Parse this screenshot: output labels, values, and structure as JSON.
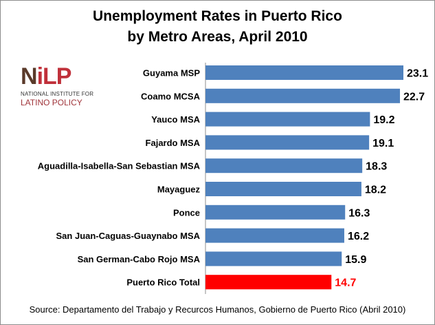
{
  "title_lines": [
    "Unemployment Rates in Puerto Rico",
    "by Metro Areas, April 2010"
  ],
  "logo": {
    "word_part1": "N",
    "word_part2": "iLP",
    "line1": "NATIONAL INSTITUTE FOR",
    "line2": "LATINO POLICY"
  },
  "source": "Source: Departamento del Trabajo y Recurcos Humanos,  Gobierno de Puerto Rico (Abril 2010)",
  "colors": {
    "bar": "#4f81bd",
    "highlight": "#ff0000",
    "highlight_label": "#ff0000",
    "logo_dark": "#5a3a2a",
    "logo_red": "#c0303a"
  },
  "chart_data": {
    "type": "bar",
    "orientation": "horizontal",
    "categories": [
      "Guyama MSP",
      "Coamo MCSA",
      "Yauco MSA",
      "Fajardo MSA",
      "Aguadilla-Isabella-San Sebastian MSA",
      "Mayaguez",
      "Ponce",
      "San Juan-Caguas-Guaynabo MSA",
      "San German-Cabo Rojo MSA",
      "Puerto Rico Total"
    ],
    "values": [
      23.1,
      22.7,
      19.2,
      19.1,
      18.3,
      18.2,
      16.3,
      16.2,
      15.9,
      14.7
    ],
    "value_labels": [
      "23.1",
      "22.7",
      "19.2",
      "19.1",
      "18.3",
      "18.2",
      "16.3",
      "16.2",
      "15.9",
      "14.7"
    ],
    "highlight_index": 9,
    "title": "Unemployment Rates in Puerto Rico by Metro Areas, April 2010",
    "xlabel": "",
    "ylabel": "",
    "xlim": [
      0,
      23.1
    ],
    "grid": false,
    "legend": "none"
  }
}
